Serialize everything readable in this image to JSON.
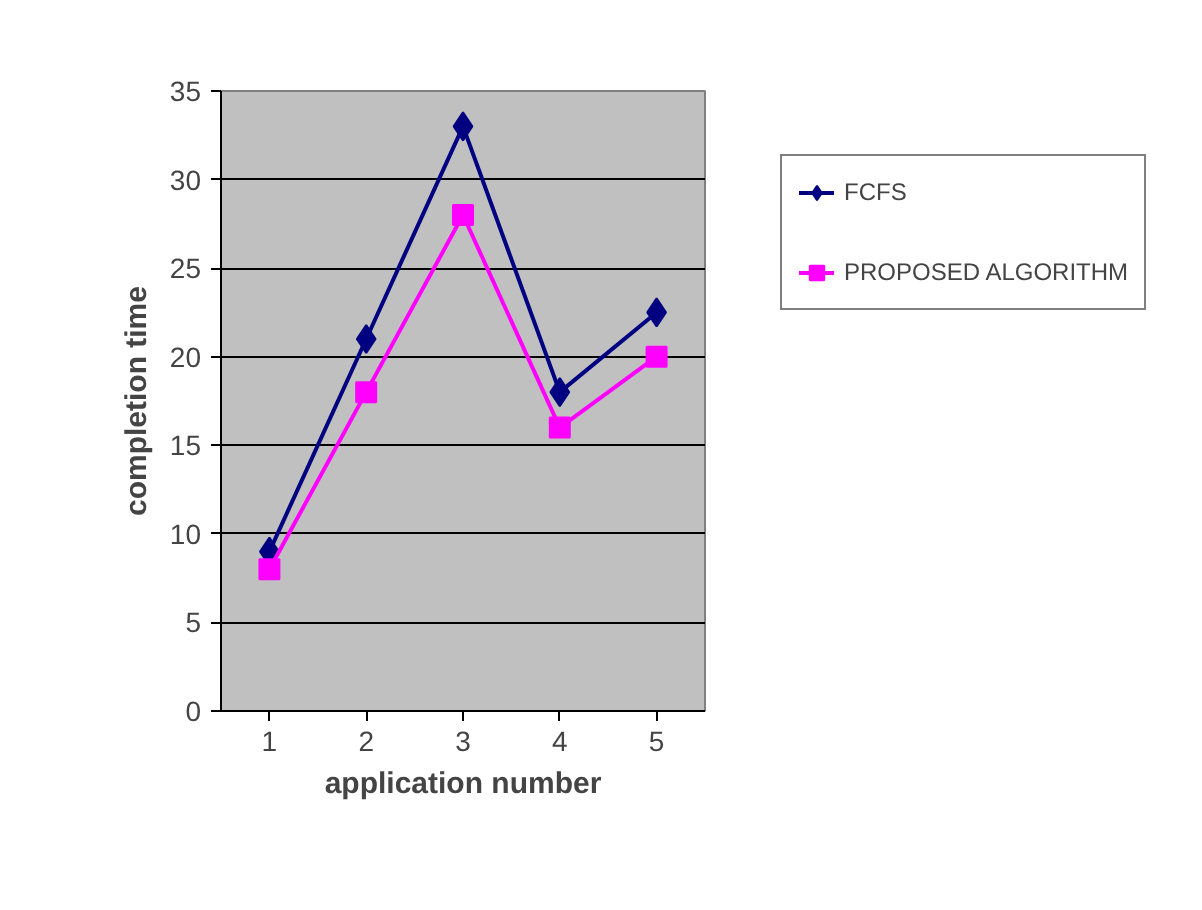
{
  "chart_data": {
    "type": "line",
    "xlabel": "application number",
    "ylabel": "completion time",
    "categories": [
      "1",
      "2",
      "3",
      "4",
      "5"
    ],
    "series": [
      {
        "name": "FCFS",
        "color": "#000080",
        "marker": "diamond",
        "values": [
          9,
          21,
          33,
          18,
          22.5
        ]
      },
      {
        "name": "PROPOSED ALGORITHM",
        "color": "#ff00ff",
        "marker": "square",
        "values": [
          8,
          18,
          28,
          16,
          20
        ]
      }
    ],
    "ylim": [
      0,
      35
    ],
    "yticks": [
      0,
      5,
      10,
      15,
      20,
      25,
      30,
      35
    ],
    "grid": "y",
    "legend": "right",
    "line_style": "solid"
  }
}
